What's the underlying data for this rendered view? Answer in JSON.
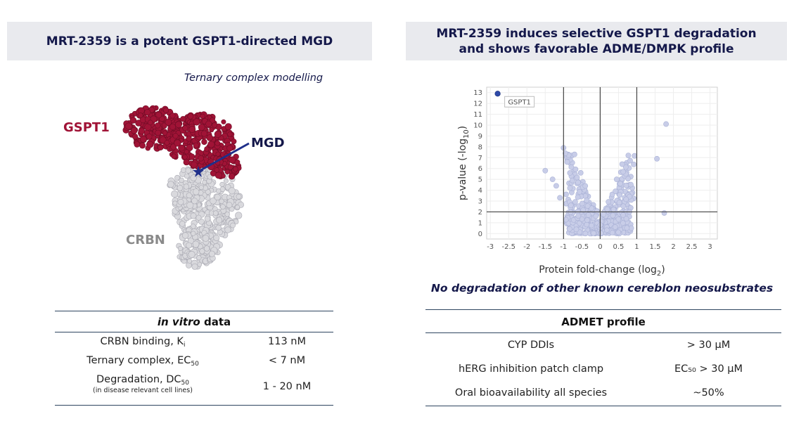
{
  "left": {
    "header": "MRT-2359 is a potent GSPT1-directed MGD",
    "model_caption": "Ternary complex modelling",
    "labels": {
      "gspt1": "GSPT1",
      "mgd": "MGD",
      "crbn": "CRBN"
    },
    "colors": {
      "gspt1": "#a01336",
      "crbn": "#d9d9dd",
      "mgd": "#1f2f8a"
    },
    "table": {
      "title_italic": "in vitro",
      "title_rest": " data",
      "rows": [
        {
          "label": "CRBN binding, K",
          "sub": "i",
          "value": "113 nM"
        },
        {
          "label": "Ternary complex, EC",
          "sub": "50",
          "value": "< 7 nM"
        },
        {
          "label": "Degradation, DC",
          "sub": "50",
          "note": "(in disease relevant cell lines)",
          "value": "1 - 20 nM"
        }
      ]
    }
  },
  "right": {
    "header_line1": "MRT-2359 induces selective GSPT1 degradation",
    "header_line2": "and shows favorable ADME/DMPK profile",
    "volcano_note": "No degradation of other known cereblon neosubstrates",
    "table": {
      "title": "ADMET profile",
      "rows": [
        {
          "label": "CYP DDIs",
          "value": "> 30 μM"
        },
        {
          "label": "hERG inhibition patch clamp",
          "value": "EC₅₀ > 30 μM"
        },
        {
          "label": "Oral bioavailability all species",
          "value": "~50%"
        }
      ]
    }
  },
  "chart_data": {
    "type": "scatter",
    "title": "",
    "xlabel": "Protein fold-change (log2)",
    "ylabel": "p-value (-log10)",
    "xlim": [
      -3.1,
      3.2
    ],
    "ylim": [
      -0.5,
      13.5
    ],
    "x_ticks": [
      -3,
      -2.5,
      -2,
      -1.5,
      -1,
      -0.5,
      0,
      0.5,
      1,
      1.5,
      2,
      2.5,
      3
    ],
    "y_ticks": [
      0,
      1,
      2,
      3,
      4,
      5,
      6,
      7,
      8,
      9,
      10,
      11,
      12,
      13
    ],
    "thresholds": {
      "x": [
        -1,
        0,
        1
      ],
      "y": 2
    },
    "highlight": {
      "label": "GSPT1",
      "x": -2.8,
      "y": 12.9,
      "color": "#2e4aa8"
    },
    "point_color": "#c8cde8",
    "outliers": [
      {
        "x": -1.5,
        "y": 5.8
      },
      {
        "x": -1.3,
        "y": 5.0
      },
      {
        "x": -1.2,
        "y": 4.4
      },
      {
        "x": -1.1,
        "y": 3.3
      },
      {
        "x": -1.0,
        "y": 7.9
      },
      {
        "x": -0.95,
        "y": 7.4
      },
      {
        "x": -0.9,
        "y": 6.6
      },
      {
        "x": -0.7,
        "y": 7.3
      },
      {
        "x": 0.6,
        "y": 6.4
      },
      {
        "x": 0.45,
        "y": 5.0
      },
      {
        "x": 1.8,
        "y": 10.1
      },
      {
        "x": 1.55,
        "y": 6.9
      },
      {
        "x": 1.75,
        "y": 1.9
      },
      {
        "x": 0.8,
        "y": 2.0
      },
      {
        "x": 0.55,
        "y": 4.6
      },
      {
        "x": -0.8,
        "y": 2.6
      }
    ]
  }
}
